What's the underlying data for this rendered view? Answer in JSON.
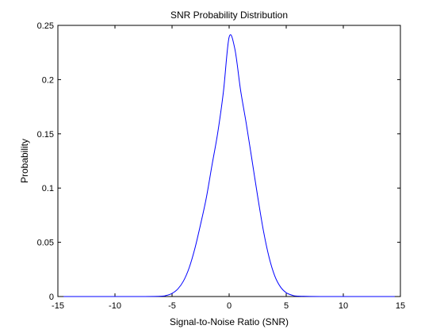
{
  "chart_data": {
    "type": "line",
    "title": "SNR Probability Distribution",
    "xlabel": "Signal-to-Noise Ratio (SNR)",
    "ylabel": "Probability",
    "xlim": [
      -15,
      15
    ],
    "ylim": [
      0,
      0.25
    ],
    "xticks": [
      -15,
      -10,
      -5,
      0,
      5,
      10,
      15
    ],
    "xtick_labels": [
      "-15",
      "-10",
      "-5",
      "0",
      "5",
      "10",
      "15"
    ],
    "yticks": [
      0,
      0.05,
      0.1,
      0.15,
      0.2,
      0.25
    ],
    "ytick_labels": [
      "0",
      "0.05",
      "0.1",
      "0.15",
      "0.2",
      "0.25"
    ],
    "grid": false,
    "legend": "none",
    "series": [
      {
        "color": "#0000ff",
        "x": [
          -14.5,
          -8,
          -6,
          -5.5,
          -5,
          -4.5,
          -4,
          -3.5,
          -3,
          -2.5,
          -2,
          -1.5,
          -1,
          -0.5,
          0,
          0.5,
          1,
          1.5,
          2,
          2.5,
          3,
          3.5,
          4,
          4.5,
          5,
          5.5,
          6,
          8,
          14.5
        ],
        "y": [
          0,
          0,
          0.0003,
          0.001,
          0.0029,
          0.0069,
          0.0143,
          0.0265,
          0.0443,
          0.0666,
          0.0909,
          0.1212,
          0.1509,
          0.1889,
          0.2392,
          0.2283,
          0.1904,
          0.1595,
          0.126,
          0.0922,
          0.0608,
          0.0361,
          0.0189,
          0.0088,
          0.0035,
          0.0013,
          0.0004,
          0,
          0
        ]
      }
    ]
  }
}
